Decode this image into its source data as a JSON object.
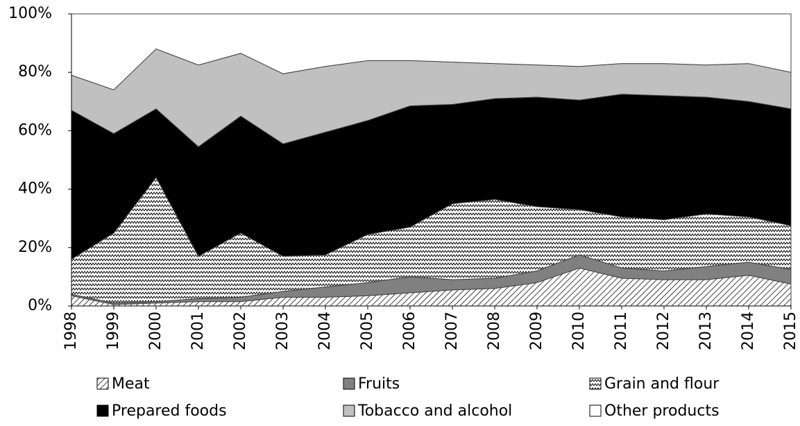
{
  "chart_data": {
    "type": "stacked-area",
    "categories": [
      "1998",
      "1999",
      "2000",
      "2001",
      "2002",
      "2003",
      "2004",
      "2005",
      "2006",
      "2007",
      "2008",
      "2009",
      "2010",
      "2011",
      "2012",
      "2013",
      "2014",
      "2015"
    ],
    "series": [
      {
        "name": "Meat",
        "color": "#ffffff",
        "values": [
          3.5,
          0.5,
          1,
          1.5,
          1.5,
          3,
          3,
          3.5,
          4.5,
          5.5,
          6,
          8,
          13,
          9.5,
          9,
          9,
          10.5,
          7.5
        ]
      },
      {
        "name": "Fruits",
        "color": "#808080",
        "values": [
          0.5,
          0.5,
          0.5,
          1,
          1.5,
          2,
          3.5,
          4.5,
          5.5,
          3.5,
          3.5,
          4,
          4.5,
          3.5,
          3,
          4.5,
          4.5,
          5
        ]
      },
      {
        "name": "Grain and flour",
        "color": "#ffffff",
        "values": [
          12,
          24,
          42.5,
          14.5,
          22,
          12,
          11,
          16.5,
          17,
          26,
          27,
          22,
          15.5,
          17.5,
          17.5,
          18,
          15.5,
          15
        ]
      },
      {
        "name": "Prepared foods",
        "color": "#000000",
        "values": [
          51,
          34,
          23.5,
          37.5,
          40,
          38.5,
          42,
          39,
          41.5,
          34,
          34.5,
          37.5,
          37.5,
          42,
          42.5,
          40,
          39.5,
          40
        ]
      },
      {
        "name": "Tobacco and alcohol",
        "color": "#c0c0c0",
        "values": [
          12,
          15,
          20.5,
          28,
          21.5,
          24,
          22.5,
          20.5,
          15.5,
          14.5,
          12,
          11,
          11.5,
          10.5,
          11,
          11,
          13,
          12.5
        ]
      },
      {
        "name": "Other products",
        "color": "#ffffff",
        "values": [
          21,
          26,
          12,
          17.5,
          13.5,
          20.5,
          18,
          16,
          16,
          16.5,
          17,
          17.5,
          18,
          17,
          17,
          17.5,
          17,
          20
        ]
      }
    ],
    "ylim": [
      0,
      100
    ],
    "yticks": [
      {
        "value": 0,
        "label": "0%"
      },
      {
        "value": 20,
        "label": "20%"
      },
      {
        "value": 40,
        "label": "40%"
      },
      {
        "value": 60,
        "label": "60%"
      },
      {
        "value": 80,
        "label": "80%"
      },
      {
        "value": 100,
        "label": "100%"
      }
    ],
    "legend": "bottom"
  }
}
